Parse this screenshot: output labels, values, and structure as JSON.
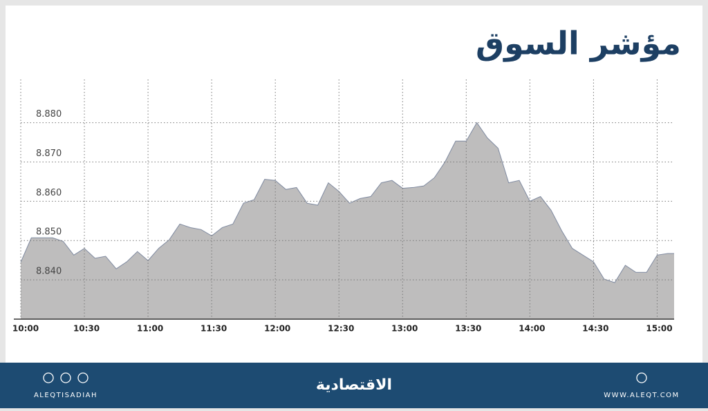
{
  "chart_data": {
    "type": "area",
    "title": "مؤشر السوق",
    "x": [
      "10:00",
      "10:05",
      "10:10",
      "10:15",
      "10:20",
      "10:25",
      "10:30",
      "10:35",
      "10:40",
      "10:45",
      "10:50",
      "10:55",
      "11:00",
      "11:05",
      "11:10",
      "11:15",
      "11:20",
      "11:25",
      "11:30",
      "11:35",
      "11:40",
      "11:45",
      "11:50",
      "11:55",
      "12:00",
      "12:05",
      "12:10",
      "12:15",
      "12:20",
      "12:25",
      "12:30",
      "12:35",
      "12:40",
      "12:45",
      "12:50",
      "12:55",
      "13:00",
      "13:05",
      "13:10",
      "13:15",
      "13:20",
      "13:25",
      "13:30",
      "13:35",
      "13:40",
      "13:45",
      "13:50",
      "13:55",
      "14:00",
      "14:05",
      "14:10",
      "14:15",
      "14:20",
      "14:25",
      "14:30",
      "14:35",
      "14:40",
      "14:45",
      "14:50",
      "14:55",
      "15:00",
      "15:05",
      "15:08"
    ],
    "values": [
      8.8445,
      8.8507,
      8.8507,
      8.8507,
      8.8498,
      8.8463,
      8.848,
      8.8455,
      8.846,
      8.8428,
      8.8446,
      8.8472,
      8.8449,
      8.848,
      8.8502,
      8.8542,
      8.8533,
      8.8528,
      8.8512,
      8.8533,
      8.8542,
      8.8595,
      8.8604,
      8.8656,
      8.8653,
      8.863,
      8.8635,
      8.8595,
      8.859,
      8.8647,
      8.8625,
      8.8595,
      8.8607,
      8.8612,
      8.8647,
      8.8653,
      8.8633,
      8.8635,
      8.8639,
      8.866,
      8.87,
      8.8753,
      8.8753,
      8.88,
      8.8761,
      8.8735,
      8.8647,
      8.8653,
      8.86,
      8.8612,
      8.8577,
      8.8525,
      8.848,
      8.8463,
      8.8446,
      8.8402,
      8.8393,
      8.8437,
      8.8419,
      8.8419,
      8.8463,
      8.8467,
      8.8467
    ],
    "color": "#bebdbd",
    "line_color": "#7f8aa0",
    "xlim": [
      "10:00",
      "15:08"
    ],
    "xticks": [
      "10:00",
      "10:30",
      "11:00",
      "11:30",
      "12:00",
      "12:30",
      "13:00",
      "13:30",
      "14:00",
      "14:30",
      "15:00"
    ],
    "ylim": [
      8.83,
      8.891
    ],
    "yticks": [
      {
        "value": 8.84,
        "label": "8.840"
      },
      {
        "value": 8.85,
        "label": "8.850"
      },
      {
        "value": 8.86,
        "label": "8.860"
      },
      {
        "value": 8.87,
        "label": "8.870"
      },
      {
        "value": 8.88,
        "label": "8.880"
      }
    ],
    "grid": true
  },
  "footer": {
    "left": "ALEQTISADIAH",
    "center": "الاقتصادية",
    "right": "WWW.ALEQT.COM"
  }
}
